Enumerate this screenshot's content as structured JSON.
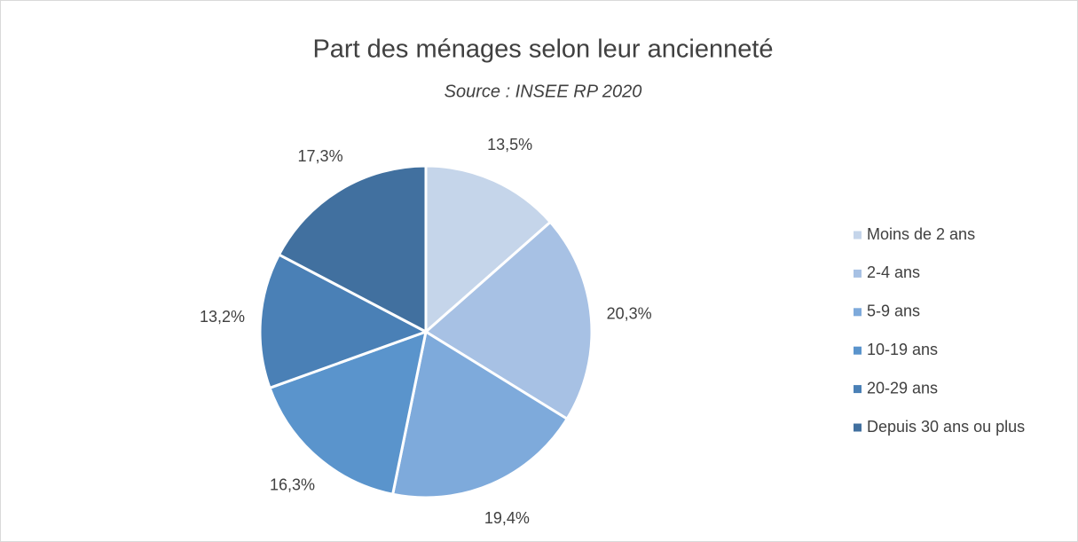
{
  "chart_data": {
    "type": "pie",
    "title": "Part des ménages selon leur ancienneté",
    "subtitle": "Source : INSEE RP 2020",
    "categories": [
      "Moins de 2 ans",
      "2-4 ans",
      "5-9 ans",
      "10-19 ans",
      "20-29 ans",
      "Depuis 30 ans ou plus"
    ],
    "values": [
      13.5,
      20.3,
      19.4,
      16.3,
      13.2,
      17.3
    ],
    "value_labels": [
      "13,5%",
      "20,3%",
      "19,4%",
      "16,3%",
      "13,2%",
      "17,3%"
    ],
    "colors": [
      "#c5d5ea",
      "#a7c1e4",
      "#7eaadb",
      "#5a94cc",
      "#4a80b6",
      "#41709f"
    ],
    "legend": "right"
  }
}
